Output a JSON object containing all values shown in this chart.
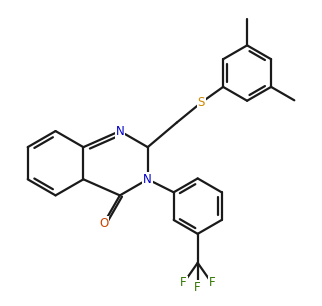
{
  "bg_color": "#ffffff",
  "bond_color": "#1a1a1a",
  "atom_colors": {
    "N": "#0000cc",
    "O": "#cc4400",
    "S": "#cc8800",
    "F": "#337700",
    "C": "#1a1a1a"
  },
  "line_width": 1.6,
  "font_size": 8.5,
  "figsize": [
    3.22,
    3.06
  ],
  "dpi": 100
}
